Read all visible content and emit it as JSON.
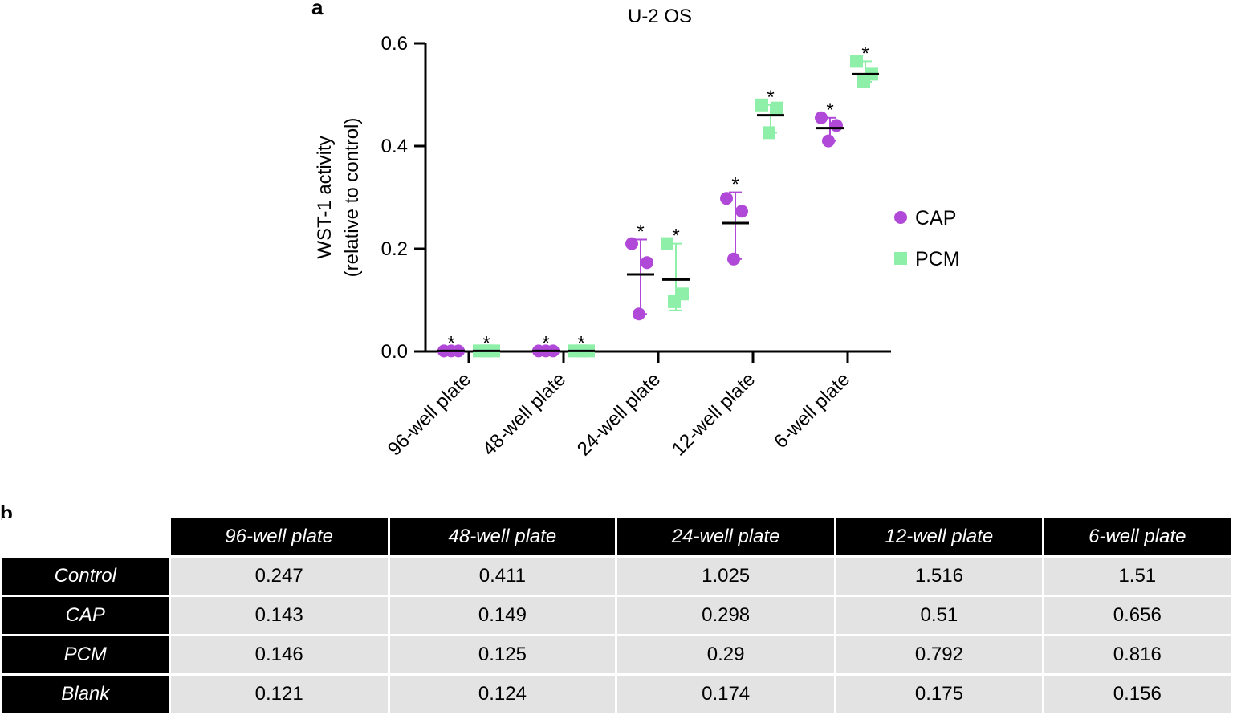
{
  "panel_a_label": "a",
  "panel_b_label": "b",
  "colors": {
    "cap": "#b048d8",
    "pcm": "#8ef0a8",
    "axis": "#000000",
    "header_bg": "#000000",
    "cell_bg": "#e3e3e3"
  },
  "chart_data": {
    "type": "scatter",
    "title": "U-2 OS",
    "ylabel_line1": "WST-1 activity",
    "ylabel_line2": "(relative to control)",
    "xlabel": "",
    "ylim": [
      0,
      0.6
    ],
    "yticks": [
      0.0,
      0.2,
      0.4,
      0.6
    ],
    "ytick_labels": [
      "0.0",
      "0.2",
      "0.4",
      "0.6"
    ],
    "categories": [
      "96-well plate",
      "48-well plate",
      "24-well plate",
      "12-well plate",
      "6-well plate"
    ],
    "legend_position": "right",
    "series": [
      {
        "name": "CAP",
        "marker": "circle",
        "points": [
          [
            0.001,
            0.001,
            0.001
          ],
          [
            0.001,
            0.001,
            0.001
          ],
          [
            0.21,
            0.173,
            0.073
          ],
          [
            0.298,
            0.273,
            0.18
          ],
          [
            0.455,
            0.44,
            0.41
          ]
        ],
        "mean": [
          0.001,
          0.001,
          0.15,
          0.25,
          0.435
        ],
        "sd_low": [
          0.001,
          0.001,
          0.073,
          0.18,
          0.41
        ],
        "sd_high": [
          0.001,
          0.001,
          0.218,
          0.31,
          0.455
        ],
        "significance": [
          "*",
          "*",
          "*",
          "*",
          "*"
        ]
      },
      {
        "name": "PCM",
        "marker": "square",
        "points": [
          [
            0.001,
            0.001,
            0.001
          ],
          [
            0.001,
            0.001,
            0.001
          ],
          [
            0.21,
            0.112,
            0.097
          ],
          [
            0.48,
            0.474,
            0.426
          ],
          [
            0.565,
            0.54,
            0.525
          ]
        ],
        "mean": [
          0.001,
          0.001,
          0.14,
          0.46,
          0.54
        ],
        "sd_low": [
          0.001,
          0.001,
          0.08,
          0.426,
          0.525
        ],
        "sd_high": [
          0.001,
          0.001,
          0.21,
          0.48,
          0.565
        ],
        "significance": [
          "*",
          "*",
          "*",
          "*",
          "*"
        ]
      }
    ]
  },
  "table": {
    "columns": [
      "96-well plate",
      "48-well plate",
      "24-well plate",
      "12-well plate",
      "6-well plate"
    ],
    "rows": [
      {
        "label": "Control",
        "values": [
          "0.247",
          "0.411",
          "1.025",
          "1.516",
          "1.51"
        ]
      },
      {
        "label": "CAP",
        "values": [
          "0.143",
          "0.149",
          "0.298",
          "0.51",
          "0.656"
        ]
      },
      {
        "label": "PCM",
        "values": [
          "0.146",
          "0.125",
          "0.29",
          "0.792",
          "0.816"
        ]
      },
      {
        "label": "Blank",
        "values": [
          "0.121",
          "0.124",
          "0.174",
          "0.175",
          "0.156"
        ]
      }
    ]
  }
}
